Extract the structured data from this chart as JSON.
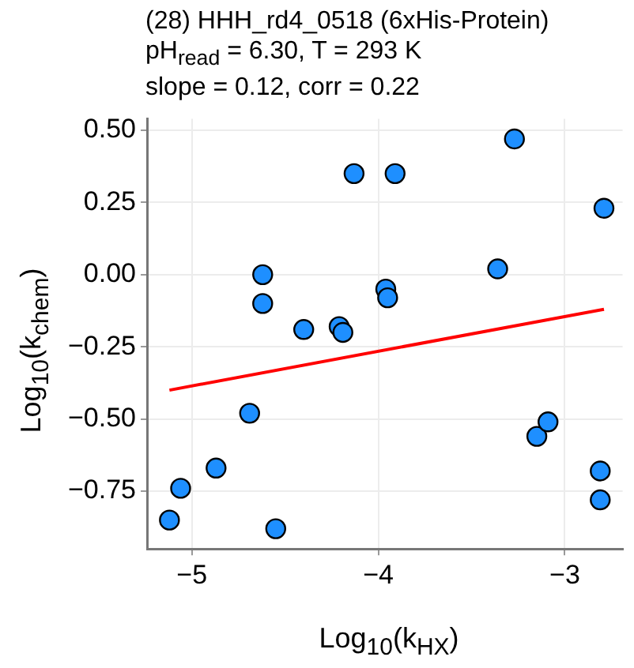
{
  "chart_data": {
    "type": "scatter",
    "title": "(28) HHH_rd4_0518 (6xHis-Protein)",
    "subtitle": "pH$_{read}$ = 6.30, T = 293 K\nslope = 0.12, corr = 0.22",
    "xlabel": "Log$_{10}$(k$_{HX}$)",
    "ylabel": "Log$_{10}$(k$_{chem}$)",
    "series": [
      {
        "color": "#1e8fff",
        "marker": "circle",
        "x": [
          -5.12,
          -5.06,
          -4.87,
          -4.69,
          -4.55,
          -4.62,
          -4.62,
          -4.4,
          -4.21,
          -4.19,
          -4.13,
          -3.91,
          -3.96,
          -3.95,
          -3.36,
          -3.27,
          -2.79,
          -3.15,
          -3.09,
          -2.81,
          -2.81
        ],
        "values": [
          -0.85,
          -0.74,
          -0.67,
          -0.48,
          -0.88,
          0.0,
          -0.1,
          -0.19,
          -0.18,
          -0.2,
          0.35,
          0.35,
          -0.05,
          -0.08,
          0.02,
          0.47,
          0.23,
          -0.56,
          -0.51,
          -0.68,
          -0.78
        ]
      },
      {
        "type": "line",
        "color": "#ff0000",
        "marker": "none",
        "line_style": "solid",
        "x": [
          -5.12,
          -2.79
        ],
        "values": [
          -0.4,
          -0.12
        ]
      }
    ],
    "xlim": [
      -5.24,
      -2.69
    ],
    "ylim": [
      -0.95,
      0.54
    ],
    "xticks": [
      {
        "value": -5,
        "label": "−5"
      },
      {
        "value": -4,
        "label": "−4"
      },
      {
        "value": -3,
        "label": "−3"
      }
    ],
    "yticks": [
      {
        "value": 0.5,
        "label": "0.50"
      },
      {
        "value": 0.25,
        "label": "0.25"
      },
      {
        "value": 0,
        "label": "0.00"
      },
      {
        "value": -0.25,
        "label": "−0.25"
      },
      {
        "value": -0.5,
        "label": "−0.50"
      },
      {
        "value": -0.75,
        "label": "−0.75"
      }
    ],
    "grid": true,
    "legend": false
  }
}
